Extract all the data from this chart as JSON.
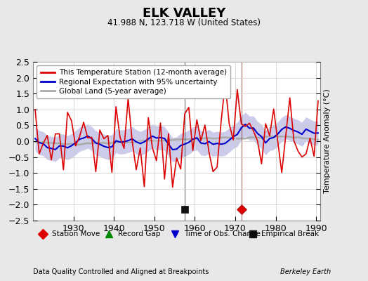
{
  "title": "ELK VALLEY",
  "subtitle": "41.988 N, 123.718 W (United States)",
  "ylabel": "Temperature Anomaly (°C)",
  "xlabel_note": "Data Quality Controlled and Aligned at Breakpoints",
  "credit": "Berkeley Earth",
  "year_start": 1920,
  "year_end": 1991,
  "ylim": [
    -2.5,
    2.5
  ],
  "yticks": [
    -2.5,
    -2,
    -1.5,
    -1,
    -0.5,
    0,
    0.5,
    1,
    1.5,
    2,
    2.5
  ],
  "xticks": [
    1930,
    1940,
    1950,
    1960,
    1970,
    1980,
    1990
  ],
  "bg_color": "#e8e8e8",
  "plot_bg_color": "#ffffff",
  "station_color": "#dd0000",
  "regional_color": "#0000cc",
  "regional_fill_color": "#aaaadd",
  "global_color": "#aaaaaa",
  "station_move_year": 1971.5,
  "station_move_value": -2.15,
  "empirical_break_year": 1957.5,
  "empirical_break_value": -2.15,
  "legend_items": [
    {
      "label": "This Temperature Station (12-month average)",
      "color": "#dd0000",
      "lw": 2
    },
    {
      "label": "Regional Expectation with 95% uncertainty",
      "color": "#0000cc",
      "lw": 2
    },
    {
      "label": "Global Land (5-year average)",
      "color": "#aaaaaa",
      "lw": 2
    }
  ],
  "marker_legend": [
    {
      "label": "Station Move",
      "color": "#dd0000",
      "marker": "D"
    },
    {
      "label": "Record Gap",
      "color": "#008800",
      "marker": "^"
    },
    {
      "label": "Time of Obs. Change",
      "color": "#0000cc",
      "marker": "v"
    },
    {
      "label": "Empirical Break",
      "color": "#111111",
      "marker": "s"
    }
  ]
}
